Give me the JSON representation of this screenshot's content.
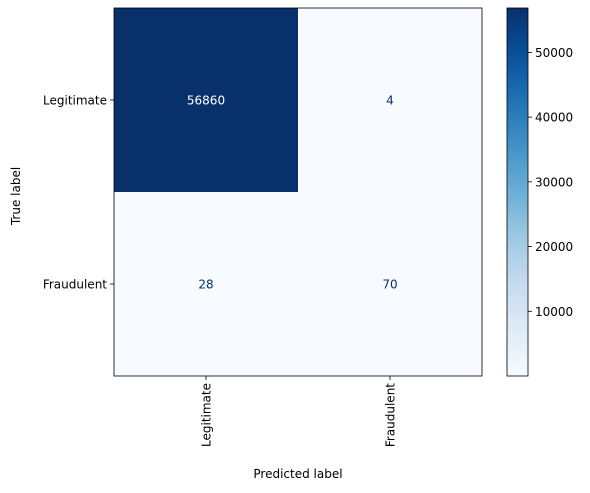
{
  "chart_data": {
    "type": "heatmap",
    "title": "",
    "xlabel": "Predicted label",
    "ylabel": "True label",
    "x_categories": [
      "Legitimate",
      "Fraudulent"
    ],
    "y_categories": [
      "Legitimate",
      "Fraudulent"
    ],
    "values": [
      [
        56860,
        4
      ],
      [
        28,
        70
      ]
    ],
    "colormap": "Blues",
    "color_low": "#f7fbff",
    "color_high": "#08306b",
    "text_dark": "#08306b",
    "text_light": "#ffffff",
    "colorbar_ticks": [
      10000,
      20000,
      30000,
      40000,
      50000
    ],
    "colorbar_labels": [
      "10000",
      "20000",
      "30000",
      "40000",
      "50000"
    ],
    "x_tick_rotation": "vertical"
  }
}
